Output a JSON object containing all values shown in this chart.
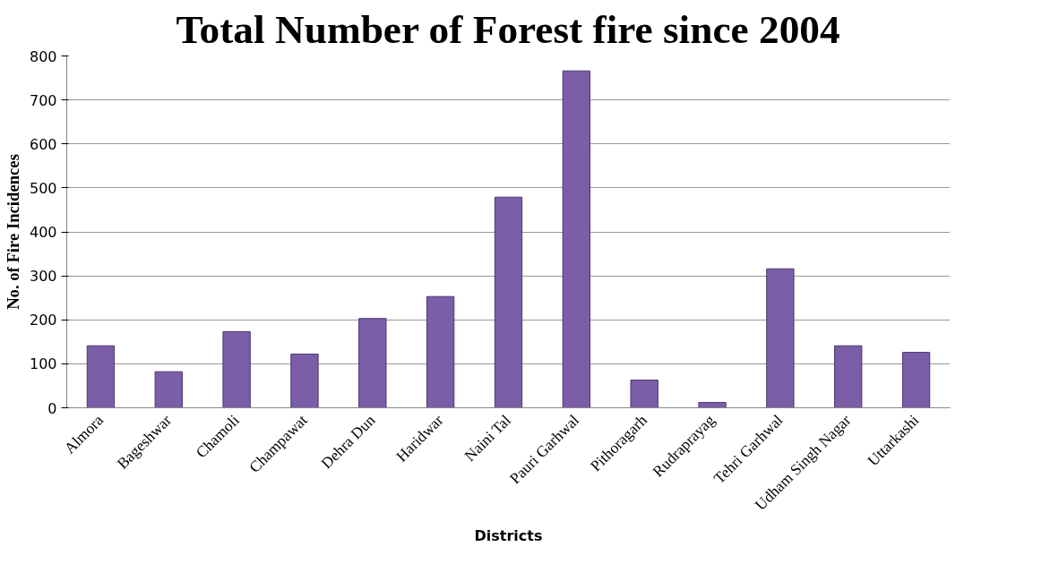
{
  "chart_data": {
    "type": "bar",
    "title": "Total Number of Forest fire since 2004",
    "xlabel": "Districts",
    "ylabel": "No. of Fire Incidences",
    "categories": [
      "Almora",
      "Bageshwar",
      "Chamoli",
      "Champawat",
      "Dehra Dun",
      "Haridwar",
      "Naini Tal",
      "Pauri Garhwal",
      "Pithoragarh",
      "Rudraprayag",
      "Tehri Garhwal",
      "Udham Singh Nagar",
      "Uttarkashi"
    ],
    "values": [
      141,
      82,
      173,
      122,
      203,
      253,
      479,
      766,
      63,
      12,
      316,
      141,
      126
    ],
    "color": "#7b5ea7",
    "ylim": [
      0,
      800
    ],
    "yticks": [
      0,
      100,
      200,
      300,
      400,
      500,
      600,
      700,
      800
    ],
    "grid": "y"
  }
}
